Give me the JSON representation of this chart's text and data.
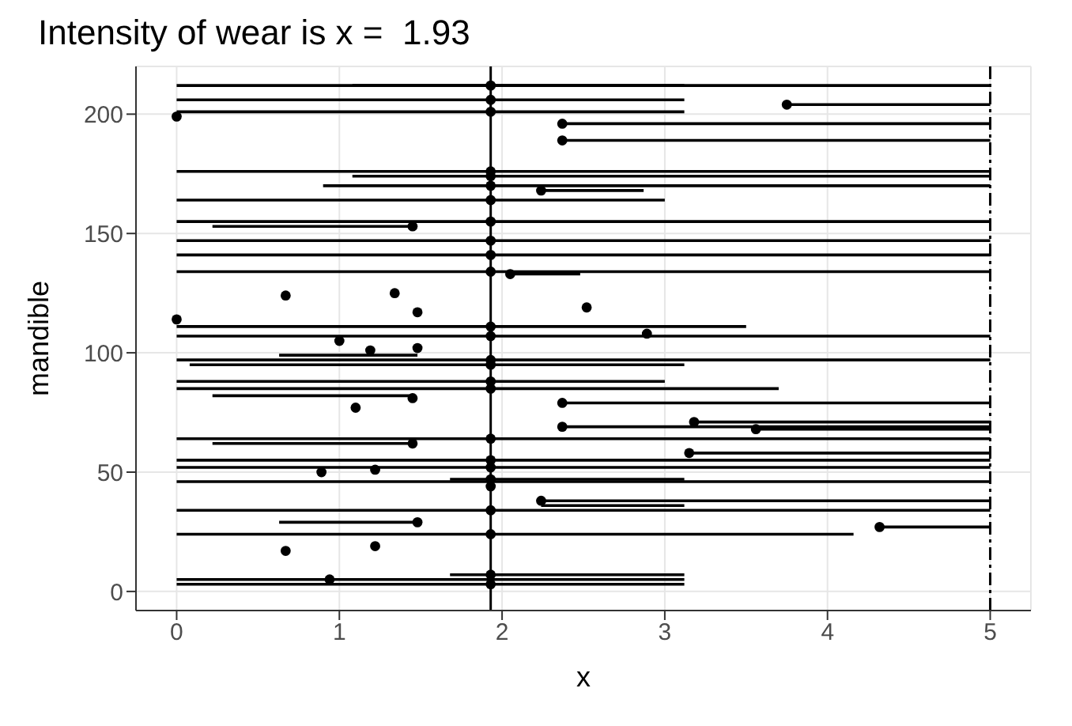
{
  "chart_data": {
    "type": "line",
    "title": "Intensity of wear is x =  1.93",
    "xlabel": "x",
    "ylabel": "mandible",
    "xlim": [
      -0.25,
      5.25
    ],
    "ylim": [
      -8,
      220
    ],
    "xticks": [
      0,
      1,
      2,
      3,
      4,
      5
    ],
    "yticks": [
      0,
      50,
      100,
      150,
      200
    ],
    "grid": true,
    "marker": "none",
    "line_style": "solid",
    "series": [
      {
        "color": "#000000",
        "x": [
          0,
          5
        ],
        "values": [
          212,
          212
        ]
      },
      {
        "color": "#000000",
        "x": [
          1.08,
          3.12
        ],
        "values": [
          212,
          212
        ]
      },
      {
        "color": "#000000",
        "x": [
          0,
          3.12
        ],
        "values": [
          206,
          206
        ]
      },
      {
        "color": "#000000",
        "x": [
          0,
          3.12
        ],
        "values": [
          201,
          201
        ]
      },
      {
        "color": "#000000",
        "x": [
          3.75,
          5
        ],
        "values": [
          204,
          204
        ]
      },
      {
        "color": "#000000",
        "x": [
          2.37,
          5
        ],
        "values": [
          196,
          196
        ]
      },
      {
        "color": "#000000",
        "x": [
          2.37,
          5
        ],
        "values": [
          189,
          189
        ]
      },
      {
        "color": "#000000",
        "x": [
          0,
          5
        ],
        "values": [
          176,
          176
        ]
      },
      {
        "color": "#000000",
        "x": [
          1.08,
          5
        ],
        "values": [
          174,
          174
        ]
      },
      {
        "color": "#000000",
        "x": [
          0.9,
          5
        ],
        "values": [
          170,
          170
        ]
      },
      {
        "color": "#000000",
        "x": [
          2.24,
          2.87
        ],
        "values": [
          168,
          168
        ]
      },
      {
        "color": "#000000",
        "x": [
          0,
          3
        ],
        "values": [
          164,
          164
        ]
      },
      {
        "color": "#000000",
        "x": [
          0,
          5
        ],
        "values": [
          155,
          155
        ]
      },
      {
        "color": "#000000",
        "x": [
          0.22,
          1.45
        ],
        "values": [
          153,
          153
        ]
      },
      {
        "color": "#000000",
        "x": [
          0,
          5
        ],
        "values": [
          147,
          147
        ]
      },
      {
        "color": "#000000",
        "x": [
          0,
          5
        ],
        "values": [
          141,
          141
        ]
      },
      {
        "color": "#000000",
        "x": [
          0,
          5
        ],
        "values": [
          134,
          134
        ]
      },
      {
        "color": "#000000",
        "x": [
          2.05,
          2.48
        ],
        "values": [
          133,
          133
        ]
      },
      {
        "color": "#000000",
        "x": [
          0,
          3.5
        ],
        "values": [
          111,
          111
        ]
      },
      {
        "color": "#000000",
        "x": [
          0,
          5
        ],
        "values": [
          107,
          107
        ]
      },
      {
        "color": "#000000",
        "x": [
          0.63,
          1.48
        ],
        "values": [
          99,
          99
        ]
      },
      {
        "color": "#000000",
        "x": [
          0,
          5
        ],
        "values": [
          97,
          97
        ]
      },
      {
        "color": "#000000",
        "x": [
          0.08,
          3.12
        ],
        "values": [
          95,
          95
        ]
      },
      {
        "color": "#000000",
        "x": [
          0,
          3
        ],
        "values": [
          88,
          88
        ]
      },
      {
        "color": "#000000",
        "x": [
          0,
          3.7
        ],
        "values": [
          85,
          85
        ]
      },
      {
        "color": "#000000",
        "x": [
          0.22,
          1.45
        ],
        "values": [
          82,
          82
        ]
      },
      {
        "color": "#000000",
        "x": [
          2.37,
          5
        ],
        "values": [
          79,
          79
        ]
      },
      {
        "color": "#000000",
        "x": [
          3.18,
          5
        ],
        "values": [
          71,
          71
        ]
      },
      {
        "color": "#000000",
        "x": [
          2.37,
          5
        ],
        "values": [
          69,
          69
        ]
      },
      {
        "color": "#000000",
        "x": [
          3.56,
          5
        ],
        "values": [
          68,
          68
        ]
      },
      {
        "color": "#000000",
        "x": [
          0,
          5
        ],
        "values": [
          64,
          64
        ]
      },
      {
        "color": "#000000",
        "x": [
          0.22,
          1.45
        ],
        "values": [
          62,
          62
        ]
      },
      {
        "color": "#000000",
        "x": [
          3.15,
          5
        ],
        "values": [
          58,
          58
        ]
      },
      {
        "color": "#000000",
        "x": [
          0,
          5
        ],
        "values": [
          55,
          55
        ]
      },
      {
        "color": "#000000",
        "x": [
          0,
          5
        ],
        "values": [
          52,
          52
        ]
      },
      {
        "color": "#000000",
        "x": [
          0,
          5
        ],
        "values": [
          46,
          46
        ]
      },
      {
        "color": "#000000",
        "x": [
          1.68,
          3.12
        ],
        "values": [
          47,
          47
        ]
      },
      {
        "color": "#000000",
        "x": [
          2.24,
          5
        ],
        "values": [
          38,
          38
        ]
      },
      {
        "color": "#000000",
        "x": [
          2.24,
          3.12
        ],
        "values": [
          36,
          36
        ]
      },
      {
        "color": "#000000",
        "x": [
          0,
          5
        ],
        "values": [
          34,
          34
        ]
      },
      {
        "color": "#000000",
        "x": [
          0.63,
          1.48
        ],
        "values": [
          29,
          29
        ]
      },
      {
        "color": "#000000",
        "x": [
          4.32,
          5
        ],
        "values": [
          27,
          27
        ]
      },
      {
        "color": "#000000",
        "x": [
          0,
          4.16
        ],
        "values": [
          24,
          24
        ]
      },
      {
        "color": "#000000",
        "x": [
          1.68,
          3.12
        ],
        "values": [
          7,
          7
        ]
      },
      {
        "color": "#000000",
        "x": [
          0,
          3.12
        ],
        "values": [
          5,
          5
        ]
      },
      {
        "color": "#000000",
        "x": [
          0,
          3.12
        ],
        "values": [
          3,
          3
        ]
      },
      {
        "type": "scatter",
        "color": "#000000",
        "marker": "circle",
        "x": [
          1.93,
          1.93,
          1.93,
          1.93,
          1.93,
          1.93,
          1.93,
          1.93,
          1.93,
          1.93,
          1.93,
          1.93,
          1.93,
          1.93,
          1.93,
          1.93,
          1.93,
          1.93,
          1.93,
          1.93,
          1.93,
          1.93,
          1.93,
          1.93,
          1.93,
          1.93,
          0,
          3.75,
          2.37,
          2.37,
          2.24,
          1.45,
          2.05,
          0.67,
          1.34,
          1.48,
          0,
          2.52,
          2.89,
          1,
          1.19,
          1.48,
          1.45,
          1.1,
          2.37,
          2.37,
          3.18,
          3.56,
          3.15,
          1.45,
          0.89,
          1.22,
          2.24,
          1.48,
          4.32,
          0.67,
          1.22,
          0.94
        ],
        "values": [
          212,
          206,
          201,
          176,
          174,
          170,
          164,
          155,
          147,
          141,
          134,
          111,
          107,
          97,
          95,
          88,
          85,
          64,
          55,
          52,
          47,
          44,
          34,
          24,
          7,
          3,
          199,
          204,
          196,
          189,
          168,
          153,
          133,
          124,
          125,
          117,
          114,
          119,
          108,
          105,
          101,
          102,
          81,
          77,
          79,
          69,
          71,
          68,
          58,
          62,
          50,
          51,
          38,
          29,
          27,
          17,
          19,
          5
        ]
      }
    ],
    "ref_lines": [
      {
        "axis": "x",
        "value": 1.93,
        "color": "#000000",
        "line_style": "solid"
      },
      {
        "axis": "x",
        "value": 5,
        "color": "#000000",
        "line_style": "dashdot"
      }
    ]
  }
}
